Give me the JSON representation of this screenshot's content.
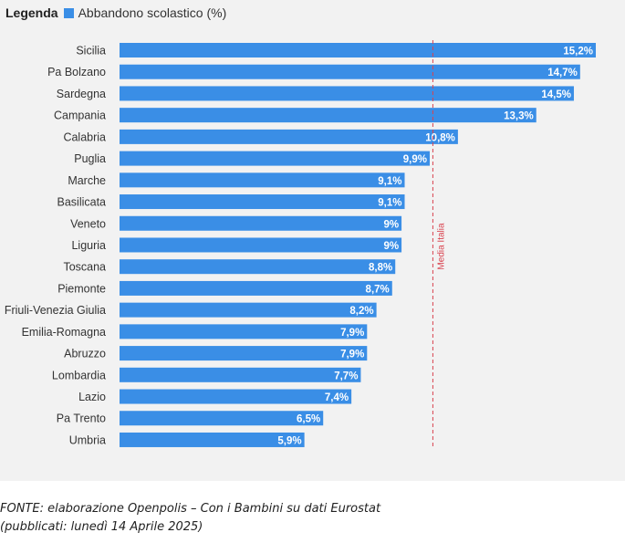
{
  "legend": {
    "title": "Legenda",
    "series_label": "Abbandono scolastico (%)"
  },
  "colors": {
    "bar": "#3a8ee6",
    "reference_line": "#d9434f",
    "panel_background": "#f2f2f2"
  },
  "chart_data": {
    "type": "bar",
    "orientation": "horizontal",
    "categories": [
      "Sicilia",
      "Pa Bolzano",
      "Sardegna",
      "Campania",
      "Calabria",
      "Puglia",
      "Marche",
      "Basilicata",
      "Veneto",
      "Liguria",
      "Toscana",
      "Piemonte",
      "Friuli-Venezia Giulia",
      "Emilia-Romagna",
      "Abruzzo",
      "Lombardia",
      "Lazio",
      "Pa Trento",
      "Umbria"
    ],
    "series": [
      {
        "name": "Abbandono scolastico (%)",
        "values": [
          15.2,
          14.7,
          14.5,
          13.3,
          10.8,
          9.9,
          9.1,
          9.1,
          9.0,
          9.0,
          8.8,
          8.7,
          8.2,
          7.9,
          7.9,
          7.7,
          7.4,
          6.5,
          5.9
        ],
        "value_labels": [
          "15,2%",
          "14,7%",
          "14,5%",
          "13,3%",
          "10,8%",
          "9,9%",
          "9,1%",
          "9,1%",
          "9%",
          "9%",
          "8,8%",
          "8,7%",
          "8,2%",
          "7,9%",
          "7,9%",
          "7,7%",
          "7,4%",
          "6,5%",
          "5,9%"
        ]
      }
    ],
    "reference_line": {
      "label": "Media Italia",
      "value": 10.0
    },
    "xlim": [
      0,
      15.2
    ],
    "grid": false,
    "legend_position": "top-left"
  },
  "source": {
    "line1": "FONTE: elaborazione Openpolis – Con i Bambini su dati Eurostat",
    "line2": "(pubblicati: lunedì 14 Aprile 2025)"
  }
}
